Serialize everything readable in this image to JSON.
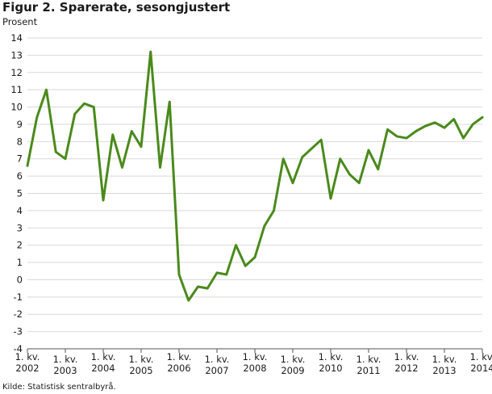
{
  "chart_data": {
    "type": "line",
    "title": "Figur 2. Sparerate, sesongjustert",
    "ylabel": "Prosent",
    "source": "Kilde: Statistisk sentralbyrå.",
    "ylim": [
      -4,
      14
    ],
    "yticks": [
      -4,
      -3,
      -2,
      -1,
      0,
      1,
      2,
      3,
      4,
      5,
      6,
      7,
      8,
      9,
      10,
      11,
      12,
      13,
      14
    ],
    "grid": true,
    "legend": "none",
    "line_color": "#4a8a1c",
    "x": [
      "2002K1",
      "2002K2",
      "2002K3",
      "2002K4",
      "2003K1",
      "2003K2",
      "2003K3",
      "2003K4",
      "2004K1",
      "2004K2",
      "2004K3",
      "2004K4",
      "2005K1",
      "2005K2",
      "2005K3",
      "2005K4",
      "2006K1",
      "2006K2",
      "2006K3",
      "2006K4",
      "2007K1",
      "2007K2",
      "2007K3",
      "2007K4",
      "2008K1",
      "2008K2",
      "2008K3",
      "2008K4",
      "2009K1",
      "2009K2",
      "2009K3",
      "2009K4",
      "2010K1",
      "2010K2",
      "2010K3",
      "2010K4",
      "2011K1",
      "2011K2",
      "2011K3",
      "2011K4",
      "2012K1",
      "2012K2",
      "2012K3",
      "2012K4",
      "2013K1",
      "2013K2",
      "2013K3",
      "2013K4",
      "2014K1"
    ],
    "values": [
      6.6,
      9.4,
      11.0,
      7.4,
      7.0,
      9.6,
      10.2,
      10.0,
      4.6,
      8.4,
      6.5,
      8.6,
      7.7,
      13.2,
      6.5,
      10.3,
      0.3,
      -1.2,
      -0.4,
      -0.5,
      0.4,
      0.3,
      2.0,
      0.8,
      1.3,
      3.1,
      4.0,
      7.0,
      5.6,
      7.1,
      7.6,
      8.1,
      4.7,
      7.0,
      6.1,
      5.6,
      7.5,
      6.4,
      8.7,
      8.3,
      8.2,
      8.6,
      8.9,
      9.1,
      8.8,
      9.3,
      8.2,
      9.0,
      9.4
    ],
    "x_tick_labels": [
      {
        "quarter": "1. kv.",
        "year": "2002"
      },
      {
        "quarter": "1. kv.",
        "year": "2003"
      },
      {
        "quarter": "1. kv.",
        "year": "2004"
      },
      {
        "quarter": "1. kv.",
        "year": "2005"
      },
      {
        "quarter": "1. kv.",
        "year": "2006"
      },
      {
        "quarter": "1. kv.",
        "year": "2007"
      },
      {
        "quarter": "1. kv.",
        "year": "2008"
      },
      {
        "quarter": "1. kv.",
        "year": "2009"
      },
      {
        "quarter": "1. kv.",
        "year": "2010"
      },
      {
        "quarter": "1. kv.",
        "year": "2011"
      },
      {
        "quarter": "1. kv.",
        "year": "2012"
      },
      {
        "quarter": "1. kv.",
        "year": "2013"
      },
      {
        "quarter": "1. kv.",
        "year": "2014"
      }
    ]
  }
}
